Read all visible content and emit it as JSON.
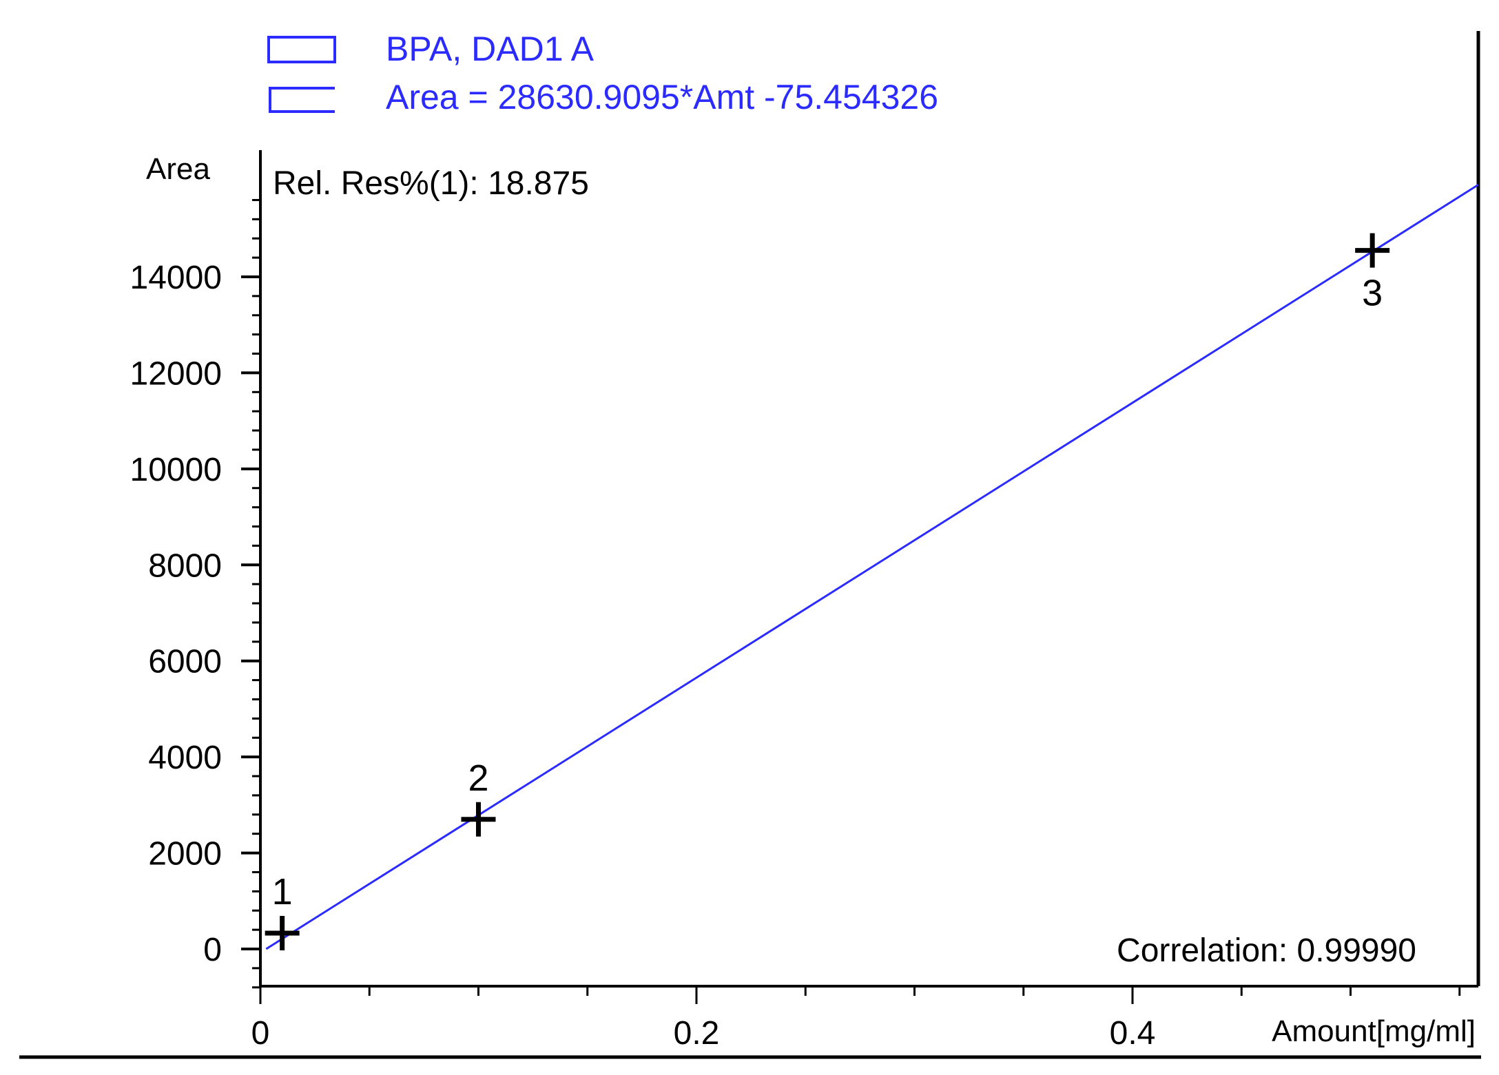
{
  "chart_data": {
    "type": "scatter",
    "legend": [
      {
        "label": "BPA, DAD1 A",
        "marker": "box"
      },
      {
        "label": "Area = 28630.9095*Amt -75.454326",
        "marker": "line"
      }
    ],
    "xlabel": "Amount[mg/ml]",
    "ylabel": "Area",
    "xlim": [
      0,
      0.56
    ],
    "ylim": [
      -800,
      16000
    ],
    "x_ticks": [
      0,
      0.2,
      0.4
    ],
    "x_tick_labels": [
      "0",
      "0.2",
      "0.4"
    ],
    "y_ticks": [
      0,
      2000,
      4000,
      6000,
      8000,
      10000,
      12000,
      14000
    ],
    "y_tick_labels": [
      "0",
      "2000",
      "4000",
      "6000",
      "8000",
      "10000",
      "12000",
      "14000"
    ],
    "points": [
      {
        "label": "1",
        "x": 0.01,
        "y": 330
      },
      {
        "label": "2",
        "x": 0.1,
        "y": 2700
      },
      {
        "label": "3",
        "x": 0.51,
        "y": 14550
      }
    ],
    "fit": {
      "slope": 28630.9095,
      "intercept": -75.454326
    },
    "annotations": {
      "rel_res": "Rel. Res%(1): 18.875",
      "correlation": "Correlation: 0.99990"
    },
    "colors": {
      "fit_line": "#2b2bff",
      "legend": "#2b2bff",
      "markers": "#000000",
      "axes": "#000000"
    }
  }
}
